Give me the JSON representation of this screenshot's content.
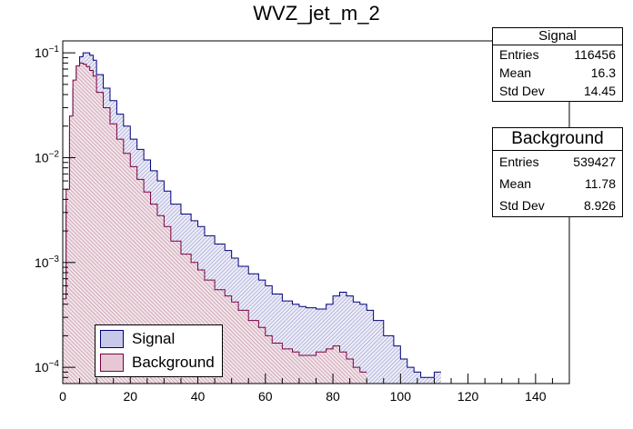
{
  "chart_data": {
    "type": "histogram",
    "title": "WVZ_jet_m_2",
    "xlabel": "",
    "ylabel": "",
    "xlim": [
      0,
      150
    ],
    "ylim": [
      7e-05,
      0.13
    ],
    "yscale": "log",
    "x_ticks": [
      0,
      20,
      40,
      60,
      80,
      100,
      120,
      140
    ],
    "x_tick_labels": [
      "0",
      "20",
      "40",
      "60",
      "80",
      "100",
      "120",
      "140"
    ],
    "y_ticks": [
      0.1,
      0.01,
      0.001,
      0.0001
    ],
    "y_tick_labels": [
      {
        "base": "10",
        "exp": "−1"
      },
      {
        "base": "10",
        "exp": "−2"
      },
      {
        "base": "10",
        "exp": "−3"
      },
      {
        "base": "10",
        "exp": "−4"
      }
    ],
    "series": [
      {
        "name": "Signal",
        "color": "#00007a",
        "fill": "#c8c8e8",
        "x": [
          1,
          2,
          3,
          4,
          5,
          6,
          7,
          8,
          9,
          10,
          12,
          14,
          16,
          18,
          20,
          22,
          24,
          26,
          28,
          30,
          32,
          35,
          38,
          40,
          42,
          45,
          48,
          50,
          52,
          55,
          58,
          60,
          62,
          65,
          68,
          70,
          72,
          75,
          78,
          80,
          82,
          84,
          86,
          88,
          90,
          92,
          95,
          98,
          100,
          102,
          104,
          106,
          108,
          110,
          112
        ],
        "values": [
          0.00025,
          0.0035,
          0.018,
          0.045,
          0.075,
          0.092,
          0.1,
          0.1,
          0.095,
          0.085,
          0.062,
          0.046,
          0.035,
          0.026,
          0.02,
          0.015,
          0.012,
          0.0095,
          0.0075,
          0.006,
          0.0048,
          0.0036,
          0.0029,
          0.0025,
          0.0022,
          0.0018,
          0.0015,
          0.0013,
          0.0011,
          0.00092,
          0.00078,
          0.00068,
          0.0006,
          0.0005,
          0.00043,
          0.0004,
          0.00038,
          0.00037,
          0.00036,
          0.0004,
          0.00048,
          0.00052,
          0.00048,
          0.00042,
          0.0004,
          0.00035,
          0.00028,
          0.0002,
          0.00016,
          0.00012,
          0.0001,
          9e-05,
          8e-05,
          8e-05,
          9e-05
        ]
      },
      {
        "name": "Background",
        "color": "#7a0040",
        "fill": "#e6c8d4",
        "x": [
          1,
          2,
          3,
          4,
          5,
          6,
          7,
          8,
          9,
          10,
          12,
          14,
          16,
          18,
          20,
          22,
          24,
          26,
          28,
          30,
          32,
          35,
          38,
          40,
          42,
          45,
          48,
          50,
          52,
          55,
          58,
          60,
          62,
          65,
          68,
          70,
          72,
          75,
          78,
          80,
          82,
          84,
          86,
          88,
          90
        ],
        "values": [
          0.00045,
          0.005,
          0.025,
          0.055,
          0.075,
          0.08,
          0.078,
          0.074,
          0.068,
          0.06,
          0.042,
          0.03,
          0.021,
          0.015,
          0.011,
          0.0082,
          0.0062,
          0.0047,
          0.0036,
          0.0028,
          0.0022,
          0.0016,
          0.0012,
          0.001,
          0.00085,
          0.00068,
          0.00055,
          0.00048,
          0.00042,
          0.00035,
          0.00028,
          0.00024,
          0.0002,
          0.00017,
          0.00015,
          0.00014,
          0.00013,
          0.00013,
          0.00014,
          0.00015,
          0.00016,
          0.00014,
          0.00012,
          0.0001,
          9e-05
        ]
      }
    ],
    "legend": {
      "position": "bottom-left",
      "entries": [
        "Signal",
        "Background"
      ]
    }
  },
  "stats": {
    "signal": {
      "title": "Signal",
      "rows": [
        {
          "label": "Entries",
          "value": "116456"
        },
        {
          "label": "Mean",
          "value": "16.3"
        },
        {
          "label": "Std Dev",
          "value": "14.45"
        }
      ]
    },
    "background": {
      "title": "Background",
      "rows": [
        {
          "label": "Entries",
          "value": "539427"
        },
        {
          "label": "Mean",
          "value": "11.78"
        },
        {
          "label": "Std Dev",
          "value": "8.926"
        }
      ]
    }
  },
  "legend_labels": {
    "signal": "Signal",
    "background": "Background"
  }
}
